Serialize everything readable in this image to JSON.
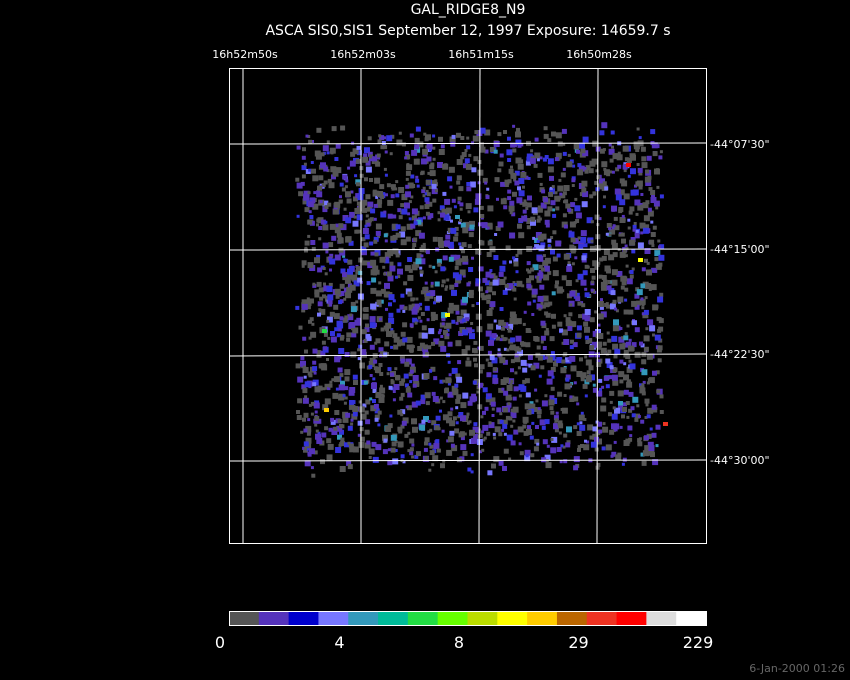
{
  "header": {
    "title": "GAL_RIDGE8_N9",
    "subtitle": "ASCA SIS0,SIS1 September 12, 1997 Exposure: 14659.7 s"
  },
  "ra_labels": [
    "16h52m50s",
    "16h52m03s",
    "16h51m15s",
    "16h50m28s"
  ],
  "dec_labels": [
    "-44°07'30\"",
    "-44°15'00\"",
    "-44°22'30\"",
    "-44°30'00\""
  ],
  "colorbar": {
    "colors": [
      "#555555",
      "#5533bb",
      "#0000cc",
      "#7777ff",
      "#3399bb",
      "#00bb99",
      "#22dd44",
      "#66ff00",
      "#bbdd00",
      "#ffff00",
      "#ffcc00",
      "#bb6600",
      "#ee3322",
      "#ff0000",
      "#dddddd",
      "#ffffff"
    ],
    "labels": [
      0,
      4,
      8,
      29,
      229
    ]
  },
  "footer": "6-Jan-2000 01:26"
}
